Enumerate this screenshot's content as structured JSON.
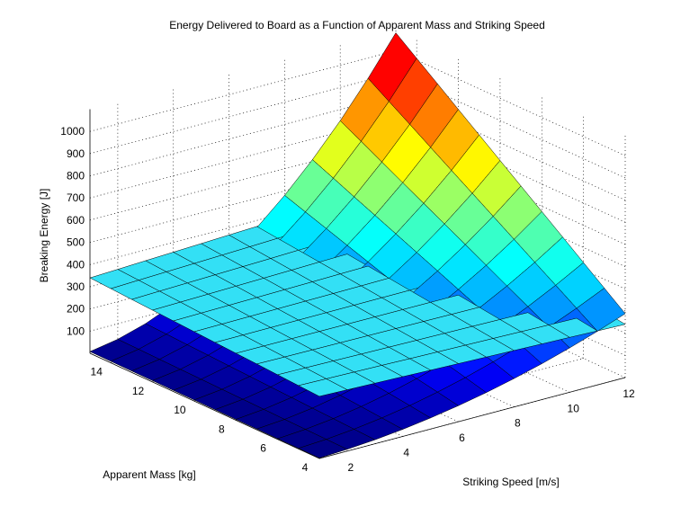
{
  "chart_data": {
    "type": "surface3d",
    "title": "Energy Delivered to Board as a Function of Apparent Mass and Striking Speed",
    "xlabel": "Striking Speed [m/s]",
    "ylabel": "Apparent Mass [kg]",
    "zlabel": "Breaking Energy [J]",
    "xlim": [
      1,
      12
    ],
    "ylim": [
      4,
      15
    ],
    "zlim": [
      0,
      1100
    ],
    "xticks": [
      "2",
      "4",
      "6",
      "8",
      "10",
      "12"
    ],
    "yticks": [
      "4",
      "6",
      "8",
      "10",
      "12",
      "14"
    ],
    "zticks": [
      "100",
      "200",
      "300",
      "400",
      "500",
      "600",
      "700",
      "800",
      "900",
      "1000"
    ],
    "grid": true,
    "colormap": "jet",
    "surfaces": [
      {
        "formula": "0.5 * mass * speed^2",
        "x": [
          1,
          2,
          3,
          4,
          5,
          6,
          7,
          8,
          9,
          10,
          11,
          12
        ],
        "y": [
          4,
          5,
          6,
          7,
          8,
          9,
          10,
          11,
          12,
          13,
          14,
          15
        ]
      },
      {
        "formula": "plane",
        "x": [
          1,
          2,
          3,
          4,
          5,
          6,
          7,
          8,
          9,
          10,
          11,
          12
        ],
        "y": [
          4,
          5,
          6,
          7,
          8,
          9,
          10,
          11,
          12,
          13,
          14,
          15
        ],
        "corners": {
          "x1_y4": 280,
          "x12_y4": 240,
          "x1_y15": 340,
          "x12_y15": 400
        },
        "color": "#33e0f5"
      }
    ]
  }
}
